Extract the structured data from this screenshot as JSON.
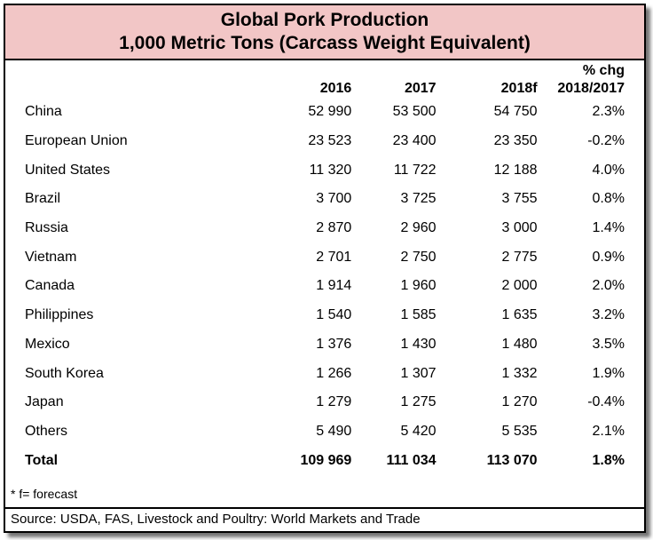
{
  "chart_data": {
    "type": "table",
    "title": "Global Pork Production",
    "subtitle": "1,000 Metric Tons (Carcass Weight Equivalent)",
    "columns": [
      "",
      "2016",
      "2017",
      "2018f",
      "% chg 2018/2017"
    ],
    "header": {
      "y2016": "2016",
      "y2017": "2017",
      "y2018": "2018f",
      "pct_line1": "% chg",
      "pct_line2": "2018/2017"
    },
    "rows": [
      [
        "China",
        "52 990",
        "53 500",
        "54 750",
        "2.3%"
      ],
      [
        "European Union",
        "23 523",
        "23 400",
        "23 350",
        "-0.2%"
      ],
      [
        "United States",
        "11 320",
        "11 722",
        "12 188",
        "4.0%"
      ],
      [
        "Brazil",
        "3 700",
        "3 725",
        "3 755",
        "0.8%"
      ],
      [
        "Russia",
        "2 870",
        "2 960",
        "3 000",
        "1.4%"
      ],
      [
        "Vietnam",
        "2 701",
        "2 750",
        "2 775",
        "0.9%"
      ],
      [
        "Canada",
        "1 914",
        "1 960",
        "2 000",
        "2.0%"
      ],
      [
        "Philippines",
        "1 540",
        "1 585",
        "1 635",
        "3.2%"
      ],
      [
        "Mexico",
        "1 376",
        "1 430",
        "1 480",
        "3.5%"
      ],
      [
        "South Korea",
        "1 266",
        "1 307",
        "1 332",
        "1.9%"
      ],
      [
        "Japan",
        "1 279",
        "1 275",
        "1 270",
        "-0.4%"
      ],
      [
        "Others",
        "5 490",
        "5 420",
        "5 535",
        "2.1%"
      ]
    ],
    "total": [
      "Total",
      "109 969",
      "111 034",
      "113 070",
      "1.8%"
    ],
    "footnote": "* f= forecast",
    "source": "Source: USDA, FAS, Livestock and Poultry: World Markets and Trade",
    "colors": {
      "header_background": "#f2c6c6",
      "border": "#000000"
    }
  }
}
